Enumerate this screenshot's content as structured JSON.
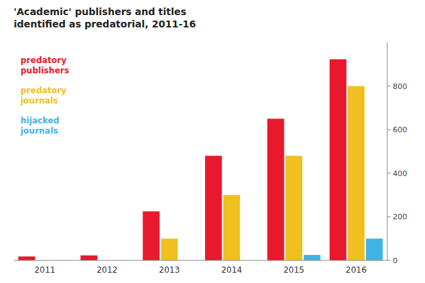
{
  "chart_data": {
    "type": "bar",
    "title": "'Academic' publishers and titles\nidentified as predatorial, 2011-16",
    "categories": [
      "2011",
      "2012",
      "2013",
      "2014",
      "2015",
      "2016"
    ],
    "series": [
      {
        "name": "predatory\npublishers",
        "color": "#e8192c",
        "values": [
          18,
          23,
          225,
          480,
          650,
          923
        ]
      },
      {
        "name": "predatory\njournals",
        "color": "#f0c020",
        "values": [
          0,
          0,
          100,
          300,
          480,
          800
        ]
      },
      {
        "name": "hijacked\njournals",
        "color": "#40b4e5",
        "values": [
          0,
          0,
          0,
          0,
          25,
          100
        ]
      }
    ],
    "ylim": [
      0,
      1000
    ],
    "yticks": [
      0,
      200,
      400,
      600,
      800
    ],
    "grid": false
  }
}
